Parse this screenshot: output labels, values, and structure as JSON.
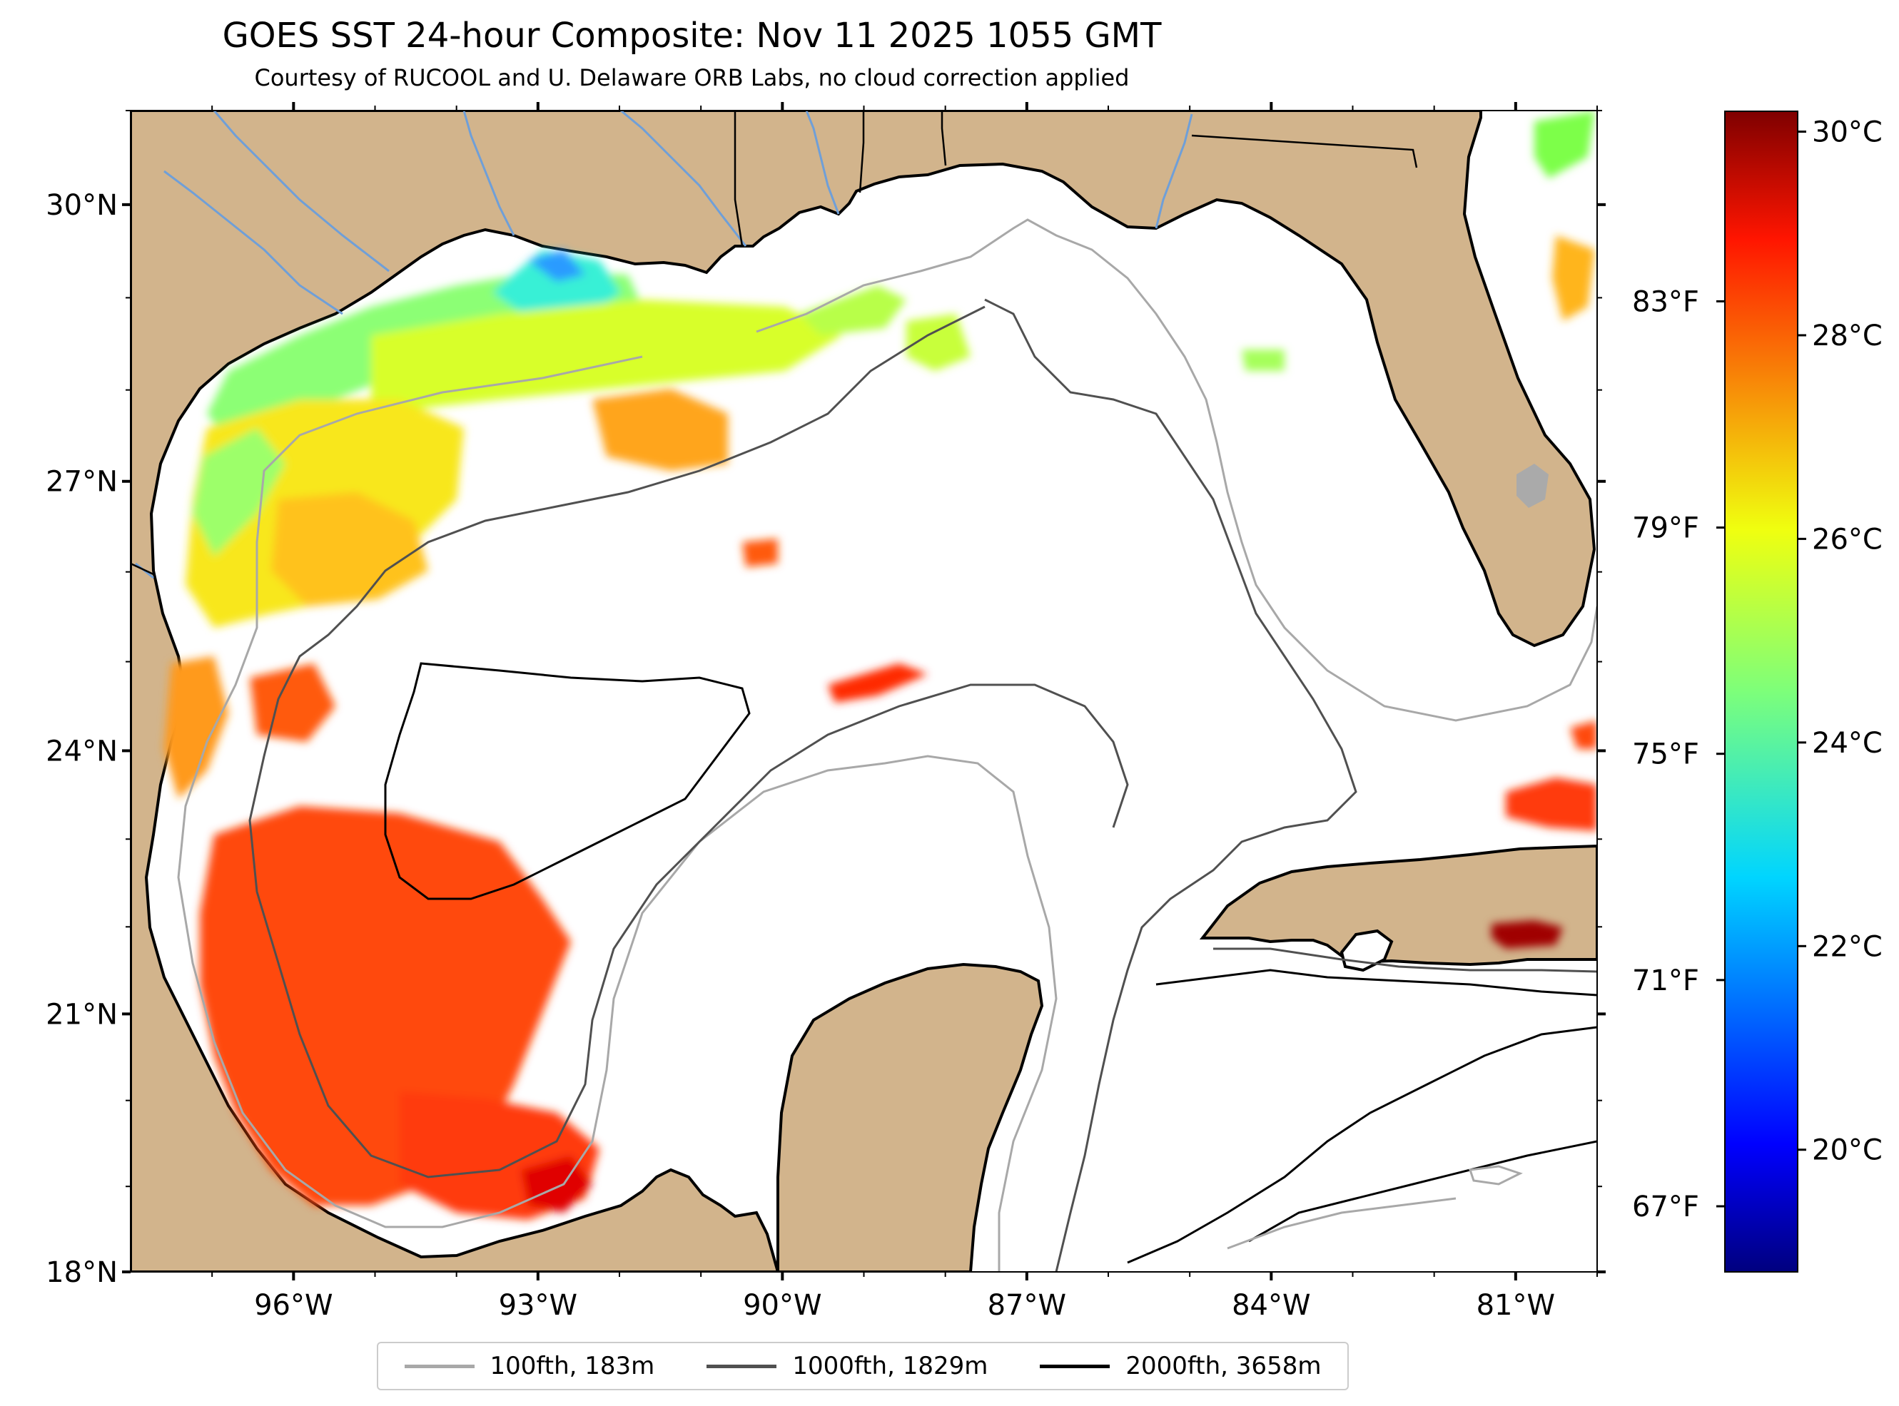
{
  "header": {
    "title": "GOES SST 24-hour Composite: Nov 11 2025 1055 GMT",
    "subtitle": "Courtesy of RUCOOL and U. Delaware ORB Labs, no cloud correction applied"
  },
  "map": {
    "region": "Gulf of Mexico",
    "lon_labels": [
      "96°W",
      "93°W",
      "90°W",
      "87°W",
      "84°W",
      "81°W"
    ],
    "lat_labels": [
      "30°N",
      "27°N",
      "24°N",
      "21°N",
      "18°N"
    ],
    "lon_ticks": [
      -96,
      -93,
      -90,
      -87,
      -84,
      -81
    ],
    "lat_ticks": [
      30,
      27,
      24,
      21,
      18
    ],
    "lon_range": [
      -98,
      -80
    ],
    "lat_range": [
      18,
      31
    ],
    "colors": {
      "land": "#d2b48c",
      "ocean_no_data": "#ffffff",
      "river": "#6f9fd8",
      "contour_100fth": "#a8a8a8",
      "contour_1000fth": "#505050",
      "contour_2000fth": "#000000"
    }
  },
  "colorbar": {
    "celsius_labels": [
      "30°C",
      "28°C",
      "26°C",
      "24°C",
      "22°C",
      "20°C"
    ],
    "celsius_values": [
      30,
      28,
      26,
      24,
      22,
      20
    ],
    "fahrenheit_labels": [
      "83°F",
      "79°F",
      "75°F",
      "71°F",
      "67°F"
    ],
    "fahrenheit_values": [
      83,
      79,
      75,
      71,
      67
    ],
    "range_celsius": [
      18.8,
      30.2
    ],
    "colormap": "jet"
  },
  "legend": {
    "items": [
      {
        "label": "100fth, 183m",
        "color": "#a8a8a8"
      },
      {
        "label": "1000fth, 1829m",
        "color": "#505050"
      },
      {
        "label": "2000fth, 3658m",
        "color": "#000000"
      }
    ]
  }
}
